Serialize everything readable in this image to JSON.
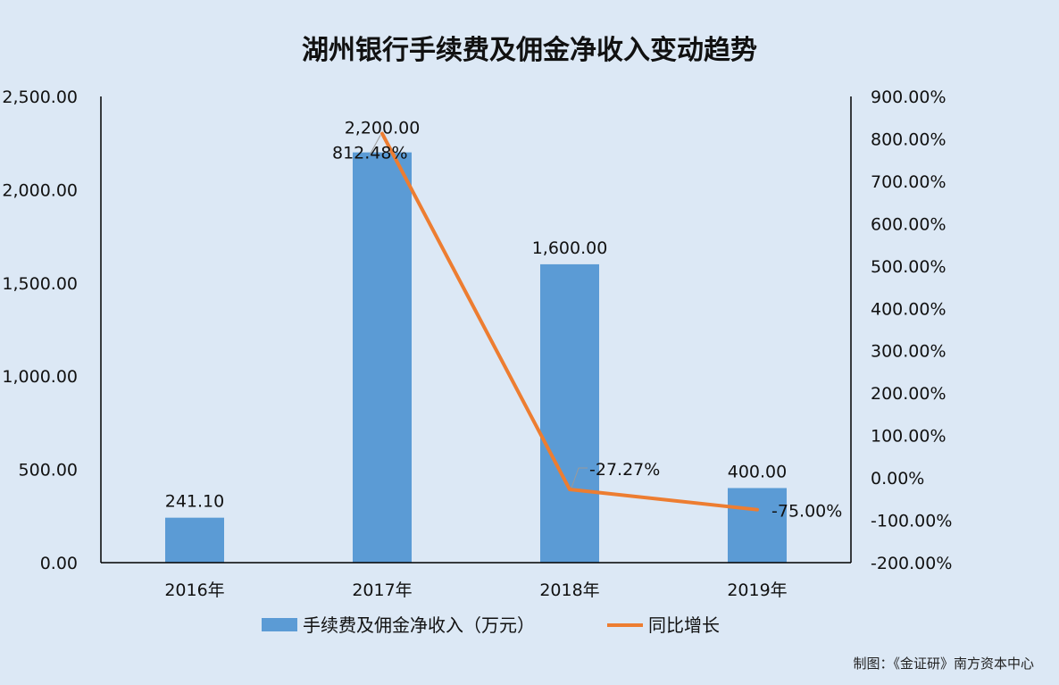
{
  "chart_data": {
    "type": "bar",
    "title": "湖州银行手续费及佣金净收入变动趋势",
    "categories": [
      "2016年",
      "2017年",
      "2018年",
      "2019年"
    ],
    "series": [
      {
        "name": "手续费及佣金净收入（万元）",
        "type": "bar",
        "axis": "left",
        "color": "#5b9bd5",
        "values": [
          241.1,
          2200.0,
          1600.0,
          400.0
        ],
        "labels": [
          "241.10",
          "2,200.00",
          "1,600.00",
          "400.00"
        ]
      },
      {
        "name": "同比增长",
        "type": "line",
        "axis": "right",
        "color": "#ed7d31",
        "values": [
          null,
          812.48,
          -27.27,
          -75.0
        ],
        "labels": [
          "",
          "812.48%",
          "-27.27%",
          "-75.00%"
        ]
      }
    ],
    "y_left": {
      "min": 0,
      "max": 2500,
      "ticks": [
        0,
        500,
        1000,
        1500,
        2000,
        2500
      ],
      "tick_labels": [
        "0.00",
        "500.00",
        "1,000.00",
        "1,500.00",
        "2,000.00",
        "2,500.00"
      ]
    },
    "y_right": {
      "min": -200,
      "max": 900,
      "ticks": [
        -200,
        -100,
        0,
        100,
        200,
        300,
        400,
        500,
        600,
        700,
        800,
        900
      ],
      "tick_labels": [
        "-200.00%",
        "-100.00%",
        "0.00%",
        "100.00%",
        "200.00%",
        "300.00%",
        "400.00%",
        "500.00%",
        "600.00%",
        "700.00%",
        "800.00%",
        "900.00%"
      ]
    },
    "legend_position": "bottom",
    "grid": false
  },
  "credit": "制图：《金证研》南方资本中心"
}
